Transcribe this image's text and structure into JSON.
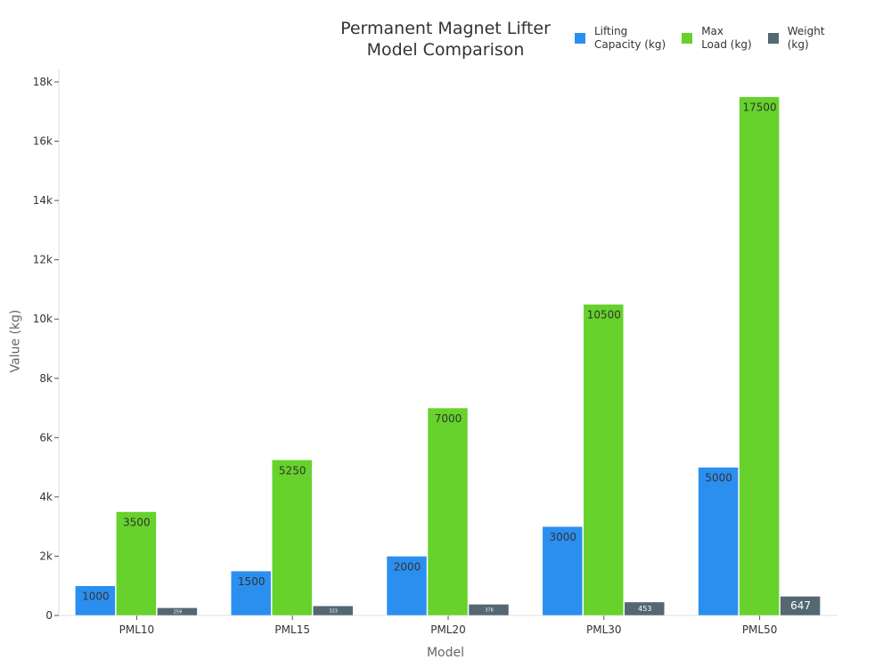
{
  "chart_data": {
    "type": "bar",
    "title": "Permanent Magnet Lifter Model Comparison",
    "title_lines": [
      "Permanent Magnet Lifter",
      "Model Comparison"
    ],
    "xlabel": "Model",
    "ylabel": "Value (kg)",
    "ylim": [
      0,
      18000
    ],
    "yticks": [
      0,
      2000,
      4000,
      6000,
      8000,
      10000,
      12000,
      14000,
      16000,
      18000
    ],
    "ytick_labels": [
      "0",
      "2k",
      "4k",
      "6k",
      "8k",
      "10k",
      "12k",
      "14k",
      "16k",
      "18k"
    ],
    "categories": [
      "PML10",
      "PML15",
      "PML20",
      "PML30",
      "PML50"
    ],
    "series": [
      {
        "name": "Lifting Capacity (kg)",
        "legend_lines": [
          "Lifting",
          "Capacity (kg)"
        ],
        "color": "#2b8ff0",
        "values": [
          1000,
          1500,
          2000,
          3000,
          5000
        ]
      },
      {
        "name": "Max Load (kg)",
        "legend_lines": [
          "Max",
          "Load (kg)"
        ],
        "color": "#66d22b",
        "values": [
          3500,
          5250,
          7000,
          10500,
          17500
        ]
      },
      {
        "name": "Weight (kg)",
        "legend_lines": [
          "Weight",
          "(kg)"
        ],
        "color": "#546872",
        "values": [
          259,
          323,
          378,
          453,
          647
        ]
      }
    ],
    "legend_position": "top-right",
    "grid": false
  }
}
